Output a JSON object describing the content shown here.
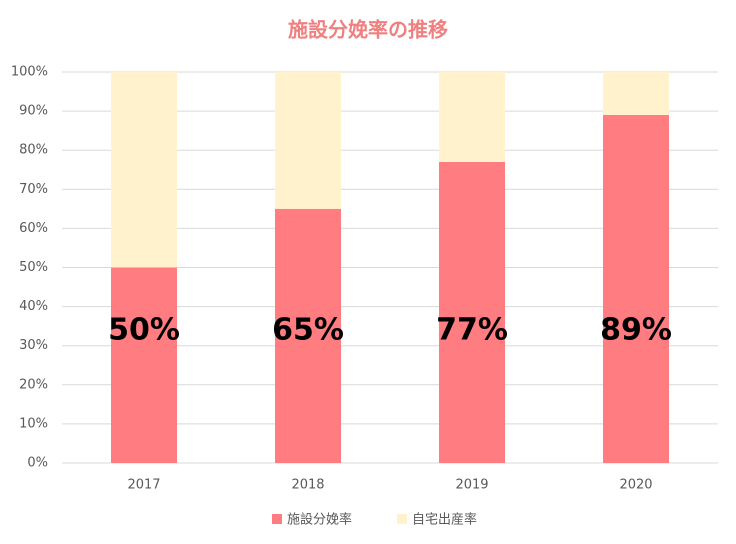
{
  "chart_data": {
    "type": "stacked_bar",
    "title": "施設分娩率の推移",
    "categories": [
      "2017",
      "2018",
      "2019",
      "2020"
    ],
    "series": [
      {
        "name": "施設分娩率",
        "color": "#ff7c80",
        "values": [
          50,
          65,
          77,
          89
        ],
        "value_labels": [
          "50%",
          "65%",
          "77%",
          "89%"
        ]
      },
      {
        "name": "自宅出産率",
        "color": "#fff2cc",
        "values": [
          50,
          35,
          23,
          11
        ]
      }
    ],
    "ylim": [
      0,
      100
    ],
    "yticks": [
      {
        "value": 0,
        "label": "0%"
      },
      {
        "value": 10,
        "label": "10%"
      },
      {
        "value": 20,
        "label": "20%"
      },
      {
        "value": 30,
        "label": "30%"
      },
      {
        "value": 40,
        "label": "40%"
      },
      {
        "value": 50,
        "label": "50%"
      },
      {
        "value": 60,
        "label": "60%"
      },
      {
        "value": 70,
        "label": "70%"
      },
      {
        "value": 80,
        "label": "80%"
      },
      {
        "value": 90,
        "label": "90%"
      },
      {
        "value": 100,
        "label": "100%"
      }
    ],
    "grid": true,
    "legend": "bottom"
  }
}
